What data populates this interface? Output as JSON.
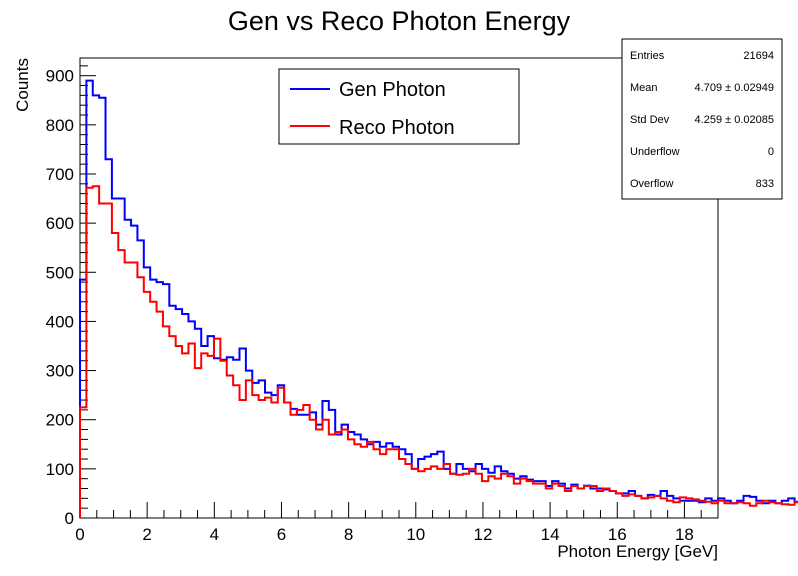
{
  "chart_data": {
    "type": "line",
    "title": "Gen vs Reco Photon Energy",
    "xlabel": "Photon Energy [GeV]",
    "ylabel": "Counts",
    "xlim": [
      0,
      19
    ],
    "ylim": [
      0,
      936
    ],
    "x_ticks": [
      0,
      2,
      4,
      6,
      8,
      10,
      12,
      14,
      16,
      18
    ],
    "y_ticks": [
      0,
      100,
      200,
      300,
      400,
      500,
      600,
      700,
      800,
      900
    ],
    "bin_width": 0.19,
    "grid": false,
    "legend_position": "top-center",
    "series": [
      {
        "name": "Gen Photon",
        "color": "#0000ff",
        "values": [
          485,
          890,
          860,
          855,
          730,
          650,
          650,
          607,
          595,
          565,
          510,
          485,
          480,
          476,
          432,
          425,
          415,
          400,
          385,
          350,
          370,
          325,
          322,
          327,
          322,
          345,
          300,
          275,
          280,
          255,
          250,
          270,
          235,
          222,
          210,
          210,
          215,
          190,
          238,
          220,
          170,
          190,
          175,
          170,
          160,
          150,
          155,
          145,
          152,
          145,
          140,
          130,
          100,
          120,
          125,
          130,
          135,
          100,
          90,
          110,
          100,
          95,
          110,
          100,
          92,
          105,
          95,
          90,
          80,
          85,
          78,
          75,
          75,
          65,
          75,
          70,
          60,
          68,
          60,
          66,
          60,
          60,
          58,
          55,
          50,
          50,
          55,
          45,
          40,
          47,
          45,
          55,
          45,
          40,
          35,
          35,
          35,
          32,
          40,
          35,
          40,
          35,
          30,
          35,
          45,
          43,
          35,
          30,
          35,
          30,
          35,
          40,
          33,
          35,
          30
        ]
      },
      {
        "name": "Reco Photon",
        "color": "#ff0000",
        "values": [
          225,
          672,
          675,
          640,
          640,
          580,
          545,
          520,
          520,
          490,
          460,
          440,
          420,
          390,
          370,
          350,
          335,
          355,
          305,
          335,
          330,
          365,
          320,
          290,
          270,
          240,
          280,
          250,
          240,
          245,
          235,
          265,
          235,
          210,
          220,
          230,
          200,
          180,
          200,
          170,
          175,
          180,
          160,
          150,
          145,
          155,
          140,
          130,
          140,
          140,
          120,
          110,
          100,
          95,
          100,
          105,
          100,
          110,
          90,
          88,
          90,
          100,
          90,
          75,
          85,
          80,
          90,
          85,
          70,
          80,
          75,
          70,
          70,
          60,
          70,
          65,
          55,
          65,
          60,
          65,
          65,
          55,
          60,
          55,
          50,
          45,
          48,
          45,
          40,
          42,
          45,
          40,
          35,
          32,
          42,
          40,
          38,
          35,
          33,
          30,
          35,
          30,
          30,
          32,
          30,
          25,
          30,
          35,
          32,
          30,
          28,
          27,
          32,
          35,
          25
        ]
      }
    ],
    "stats": {
      "entries_label": "Entries",
      "entries_value": "21694",
      "mean_label": "Mean",
      "mean_value": "4.709 ± 0.02949",
      "stddev_label": "Std Dev",
      "stddev_value": "4.259 ± 0.02085",
      "underflow_label": "Underflow",
      "underflow_value": "0",
      "overflow_label": "Overflow",
      "overflow_value": "833"
    }
  }
}
